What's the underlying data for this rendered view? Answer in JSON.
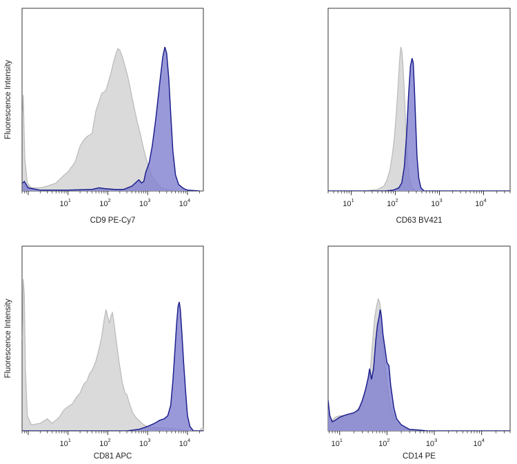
{
  "chart_data": [
    {
      "type": "area",
      "xlabel": "CD9 PE-Cy7",
      "ylabel": "Fluorescence Intensity",
      "x_scale": "log",
      "xlim": [
        0.7,
        25000
      ],
      "ylim": [
        0,
        1.0
      ],
      "x_ticks": [
        10,
        100,
        1000,
        10000
      ],
      "x_tick_labels": [
        {
          "base": "10",
          "exp": "1"
        },
        {
          "base": "10",
          "exp": "2"
        },
        {
          "base": "10",
          "exp": "3"
        },
        {
          "base": "10",
          "exp": "4"
        }
      ],
      "grid": false,
      "colors": {
        "control_fill": "#d8d8d8",
        "control_line": "#b9b9b9",
        "stained_fill": "#7f7fcf",
        "stained_line": "#1c1f8c"
      },
      "series": [
        {
          "role": "control",
          "points": [
            [
              0.72,
              0.47
            ],
            [
              0.75,
              0.6
            ],
            [
              0.82,
              0.2
            ],
            [
              0.95,
              0.05
            ],
            [
              1.2,
              0.02
            ],
            [
              2,
              0.02
            ],
            [
              3,
              0.03
            ],
            [
              5,
              0.05
            ],
            [
              8,
              0.1
            ],
            [
              10,
              0.12
            ],
            [
              15,
              0.18
            ],
            [
              20,
              0.28
            ],
            [
              25,
              0.32
            ],
            [
              30,
              0.34
            ],
            [
              40,
              0.36
            ],
            [
              50,
              0.5
            ],
            [
              60,
              0.56
            ],
            [
              70,
              0.61
            ],
            [
              80,
              0.62
            ],
            [
              90,
              0.63
            ],
            [
              100,
              0.67
            ],
            [
              120,
              0.74
            ],
            [
              140,
              0.81
            ],
            [
              160,
              0.86
            ],
            [
              180,
              0.89
            ],
            [
              200,
              0.88
            ],
            [
              230,
              0.84
            ],
            [
              270,
              0.78
            ],
            [
              320,
              0.71
            ],
            [
              380,
              0.62
            ],
            [
              450,
              0.53
            ],
            [
              550,
              0.43
            ],
            [
              650,
              0.36
            ],
            [
              800,
              0.26
            ],
            [
              1000,
              0.17
            ],
            [
              1300,
              0.09
            ],
            [
              1700,
              0.05
            ],
            [
              2200,
              0.02
            ],
            [
              3000,
              0.01
            ],
            [
              5000,
              0.0
            ],
            [
              20000,
              0.0
            ]
          ]
        },
        {
          "role": "stained",
          "points": [
            [
              0.72,
              0.05
            ],
            [
              0.8,
              0.06
            ],
            [
              1,
              0.02
            ],
            [
              2,
              0.005
            ],
            [
              10,
              0.005
            ],
            [
              40,
              0.01
            ],
            [
              60,
              0.02
            ],
            [
              80,
              0.015
            ],
            [
              150,
              0.01
            ],
            [
              250,
              0.01
            ],
            [
              400,
              0.03
            ],
            [
              600,
              0.07
            ],
            [
              700,
              0.05
            ],
            [
              800,
              0.06
            ],
            [
              900,
              0.12
            ],
            [
              1000,
              0.15
            ],
            [
              1100,
              0.18
            ],
            [
              1300,
              0.28
            ],
            [
              1600,
              0.45
            ],
            [
              2000,
              0.67
            ],
            [
              2400,
              0.84
            ],
            [
              2700,
              0.9
            ],
            [
              3000,
              0.86
            ],
            [
              3400,
              0.7
            ],
            [
              3800,
              0.48
            ],
            [
              4300,
              0.25
            ],
            [
              5000,
              0.1
            ],
            [
              6000,
              0.04
            ],
            [
              8000,
              0.015
            ],
            [
              10000,
              0.005
            ],
            [
              20000,
              0.0
            ]
          ]
        }
      ]
    },
    {
      "type": "area",
      "xlabel": "CD63 BV421",
      "ylabel": "",
      "x_scale": "log",
      "xlim": [
        3,
        40000
      ],
      "ylim": [
        0,
        1.0
      ],
      "x_ticks": [
        10,
        100,
        1000,
        10000
      ],
      "x_tick_labels": [
        {
          "base": "10",
          "exp": "1"
        },
        {
          "base": "10",
          "exp": "2"
        },
        {
          "base": "10",
          "exp": "3"
        },
        {
          "base": "10",
          "exp": "4"
        }
      ],
      "grid": false,
      "colors": {
        "control_fill": "#d8d8d8",
        "control_line": "#b9b9b9",
        "stained_fill": "#7f7fcf",
        "stained_line": "#1c1f8c"
      },
      "series": [
        {
          "role": "control",
          "points": [
            [
              3,
              0.0
            ],
            [
              20,
              0.0
            ],
            [
              40,
              0.01
            ],
            [
              55,
              0.03
            ],
            [
              65,
              0.07
            ],
            [
              75,
              0.13
            ],
            [
              85,
              0.22
            ],
            [
              95,
              0.33
            ],
            [
              105,
              0.48
            ],
            [
              115,
              0.65
            ],
            [
              125,
              0.82
            ],
            [
              133,
              0.9
            ],
            [
              140,
              0.88
            ],
            [
              148,
              0.8
            ],
            [
              158,
              0.65
            ],
            [
              168,
              0.48
            ],
            [
              180,
              0.3
            ],
            [
              195,
              0.15
            ],
            [
              215,
              0.06
            ],
            [
              240,
              0.02
            ],
            [
              300,
              0.0
            ],
            [
              40000,
              0.0
            ]
          ]
        },
        {
          "role": "stained",
          "points": [
            [
              3,
              0.0
            ],
            [
              60,
              0.0
            ],
            [
              90,
              0.005
            ],
            [
              120,
              0.02
            ],
            [
              140,
              0.05
            ],
            [
              160,
              0.15
            ],
            [
              180,
              0.35
            ],
            [
              200,
              0.6
            ],
            [
              220,
              0.78
            ],
            [
              240,
              0.83
            ],
            [
              255,
              0.8
            ],
            [
              270,
              0.65
            ],
            [
              290,
              0.42
            ],
            [
              310,
              0.22
            ],
            [
              340,
              0.08
            ],
            [
              380,
              0.02
            ],
            [
              450,
              0.0
            ],
            [
              40000,
              0.0
            ]
          ]
        }
      ]
    },
    {
      "type": "area",
      "xlabel": "CD81 APC",
      "ylabel": "Fluorescence Intensity",
      "x_scale": "log",
      "xlim": [
        0.7,
        25000
      ],
      "ylim": [
        0,
        1.0
      ],
      "x_ticks": [
        10,
        100,
        1000,
        10000
      ],
      "x_tick_labels": [
        {
          "base": "10",
          "exp": "1"
        },
        {
          "base": "10",
          "exp": "2"
        },
        {
          "base": "10",
          "exp": "3"
        },
        {
          "base": "10",
          "exp": "4"
        }
      ],
      "grid": false,
      "colors": {
        "control_fill": "#d8d8d8",
        "control_line": "#b9b9b9",
        "stained_fill": "#7f7fcf",
        "stained_line": "#1c1f8c"
      },
      "series": [
        {
          "role": "control",
          "points": [
            [
              0.72,
              0.6
            ],
            [
              0.75,
              1.0
            ],
            [
              0.8,
              0.9
            ],
            [
              0.85,
              0.4
            ],
            [
              0.95,
              0.1
            ],
            [
              1.2,
              0.04
            ],
            [
              2,
              0.05
            ],
            [
              3,
              0.08
            ],
            [
              4,
              0.05
            ],
            [
              6,
              0.09
            ],
            [
              8,
              0.14
            ],
            [
              10,
              0.16
            ],
            [
              13,
              0.18
            ],
            [
              16,
              0.22
            ],
            [
              20,
              0.25
            ],
            [
              25,
              0.31
            ],
            [
              30,
              0.33
            ],
            [
              35,
              0.38
            ],
            [
              40,
              0.4
            ],
            [
              45,
              0.43
            ],
            [
              50,
              0.46
            ],
            [
              60,
              0.54
            ],
            [
              70,
              0.62
            ],
            [
              80,
              0.73
            ],
            [
              90,
              0.8
            ],
            [
              100,
              0.75
            ],
            [
              110,
              0.71
            ],
            [
              120,
              0.76
            ],
            [
              130,
              0.78
            ],
            [
              140,
              0.73
            ],
            [
              160,
              0.61
            ],
            [
              190,
              0.46
            ],
            [
              230,
              0.32
            ],
            [
              270,
              0.25
            ],
            [
              300,
              0.24
            ],
            [
              350,
              0.18
            ],
            [
              420,
              0.12
            ],
            [
              500,
              0.09
            ],
            [
              600,
              0.07
            ],
            [
              800,
              0.04
            ],
            [
              1000,
              0.03
            ],
            [
              1500,
              0.02
            ],
            [
              2500,
              0.02
            ],
            [
              4000,
              0.015
            ],
            [
              8000,
              0.005
            ],
            [
              20000,
              0.0
            ],
            [
              25000,
              0.03
            ]
          ]
        },
        {
          "role": "stained",
          "points": [
            [
              0.72,
              0.0
            ],
            [
              100,
              0.0
            ],
            [
              300,
              0.0
            ],
            [
              600,
              0.01
            ],
            [
              1000,
              0.03
            ],
            [
              1500,
              0.05
            ],
            [
              2000,
              0.07
            ],
            [
              2600,
              0.08
            ],
            [
              3200,
              0.1
            ],
            [
              3800,
              0.17
            ],
            [
              4300,
              0.33
            ],
            [
              4800,
              0.52
            ],
            [
              5300,
              0.7
            ],
            [
              5800,
              0.82
            ],
            [
              6200,
              0.85
            ],
            [
              6600,
              0.8
            ],
            [
              7200,
              0.65
            ],
            [
              8000,
              0.45
            ],
            [
              9000,
              0.25
            ],
            [
              10000,
              0.1
            ],
            [
              11500,
              0.03
            ],
            [
              14000,
              0.0
            ],
            [
              25000,
              0.0
            ]
          ]
        }
      ]
    },
    {
      "type": "area",
      "xlabel": "CD14 PE",
      "ylabel": "",
      "x_scale": "log",
      "xlim": [
        5.7,
        40000
      ],
      "ylim": [
        0,
        1.0
      ],
      "x_ticks": [
        10,
        100,
        1000,
        10000
      ],
      "x_tick_labels": [
        {
          "base": "10",
          "exp": "1"
        },
        {
          "base": "10",
          "exp": "2"
        },
        {
          "base": "10",
          "exp": "3"
        },
        {
          "base": "10",
          "exp": "4"
        }
      ],
      "grid": false,
      "colors": {
        "control_fill": "#d8d8d8",
        "control_line": "#b9b9b9",
        "stained_fill": "#7f7fcf",
        "stained_line": "#1c1f8c"
      },
      "series": [
        {
          "role": "control",
          "points": [
            [
              5.7,
              0.2
            ],
            [
              6,
              0.08
            ],
            [
              7,
              0.07
            ],
            [
              8,
              0.09
            ],
            [
              10,
              0.1
            ],
            [
              15,
              0.1
            ],
            [
              20,
              0.11
            ],
            [
              25,
              0.15
            ],
            [
              30,
              0.17
            ],
            [
              35,
              0.25
            ],
            [
              40,
              0.34
            ],
            [
              45,
              0.42
            ],
            [
              50,
              0.6
            ],
            [
              55,
              0.75
            ],
            [
              60,
              0.82
            ],
            [
              65,
              0.87
            ],
            [
              70,
              0.85
            ],
            [
              75,
              0.78
            ],
            [
              80,
              0.65
            ],
            [
              90,
              0.45
            ],
            [
              100,
              0.3
            ],
            [
              120,
              0.15
            ],
            [
              150,
              0.06
            ],
            [
              200,
              0.02
            ],
            [
              300,
              0.005
            ],
            [
              500,
              0.0
            ],
            [
              40000,
              0.0
            ]
          ]
        },
        {
          "role": "stained",
          "points": [
            [
              5.7,
              0.2
            ],
            [
              6.2,
              0.1
            ],
            [
              7,
              0.06
            ],
            [
              8,
              0.07
            ],
            [
              10,
              0.09
            ],
            [
              12,
              0.1
            ],
            [
              15,
              0.11
            ],
            [
              20,
              0.12
            ],
            [
              25,
              0.14
            ],
            [
              30,
              0.2
            ],
            [
              35,
              0.27
            ],
            [
              40,
              0.35
            ],
            [
              43,
              0.41
            ],
            [
              47,
              0.34
            ],
            [
              52,
              0.41
            ],
            [
              58,
              0.6
            ],
            [
              63,
              0.7
            ],
            [
              68,
              0.75
            ],
            [
              72,
              0.8
            ],
            [
              76,
              0.76
            ],
            [
              82,
              0.64
            ],
            [
              90,
              0.55
            ],
            [
              100,
              0.45
            ],
            [
              110,
              0.43
            ],
            [
              120,
              0.3
            ],
            [
              140,
              0.15
            ],
            [
              160,
              0.08
            ],
            [
              200,
              0.04
            ],
            [
              300,
              0.01
            ],
            [
              500,
              0.005
            ],
            [
              700,
              0.0
            ],
            [
              40000,
              0.0
            ]
          ]
        }
      ]
    }
  ]
}
